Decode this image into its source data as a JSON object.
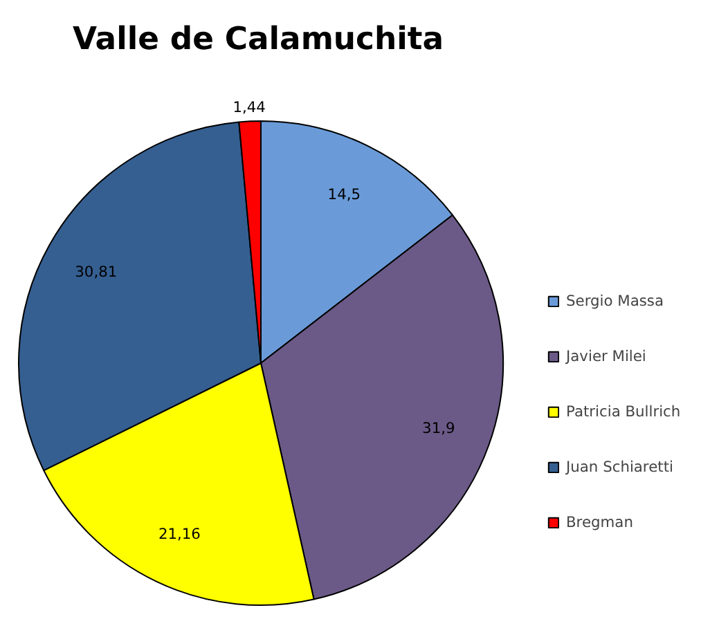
{
  "chart_data": {
    "type": "pie",
    "title": "Valle de Calamuchita",
    "categories": [
      "Sergio Massa",
      "Javier Milei",
      "Patricia Bullrich",
      "Juan Schiaretti",
      "Bregman"
    ],
    "values": [
      14.5,
      31.9,
      21.16,
      30.81,
      1.44
    ],
    "value_labels": [
      "14,5",
      "31,9",
      "21,16",
      "30,81",
      "1,44"
    ],
    "colors": [
      "#6a9bd8",
      "#6b5a87",
      "#ffff00",
      "#355f91",
      "#ff0000"
    ],
    "legend": "right"
  }
}
